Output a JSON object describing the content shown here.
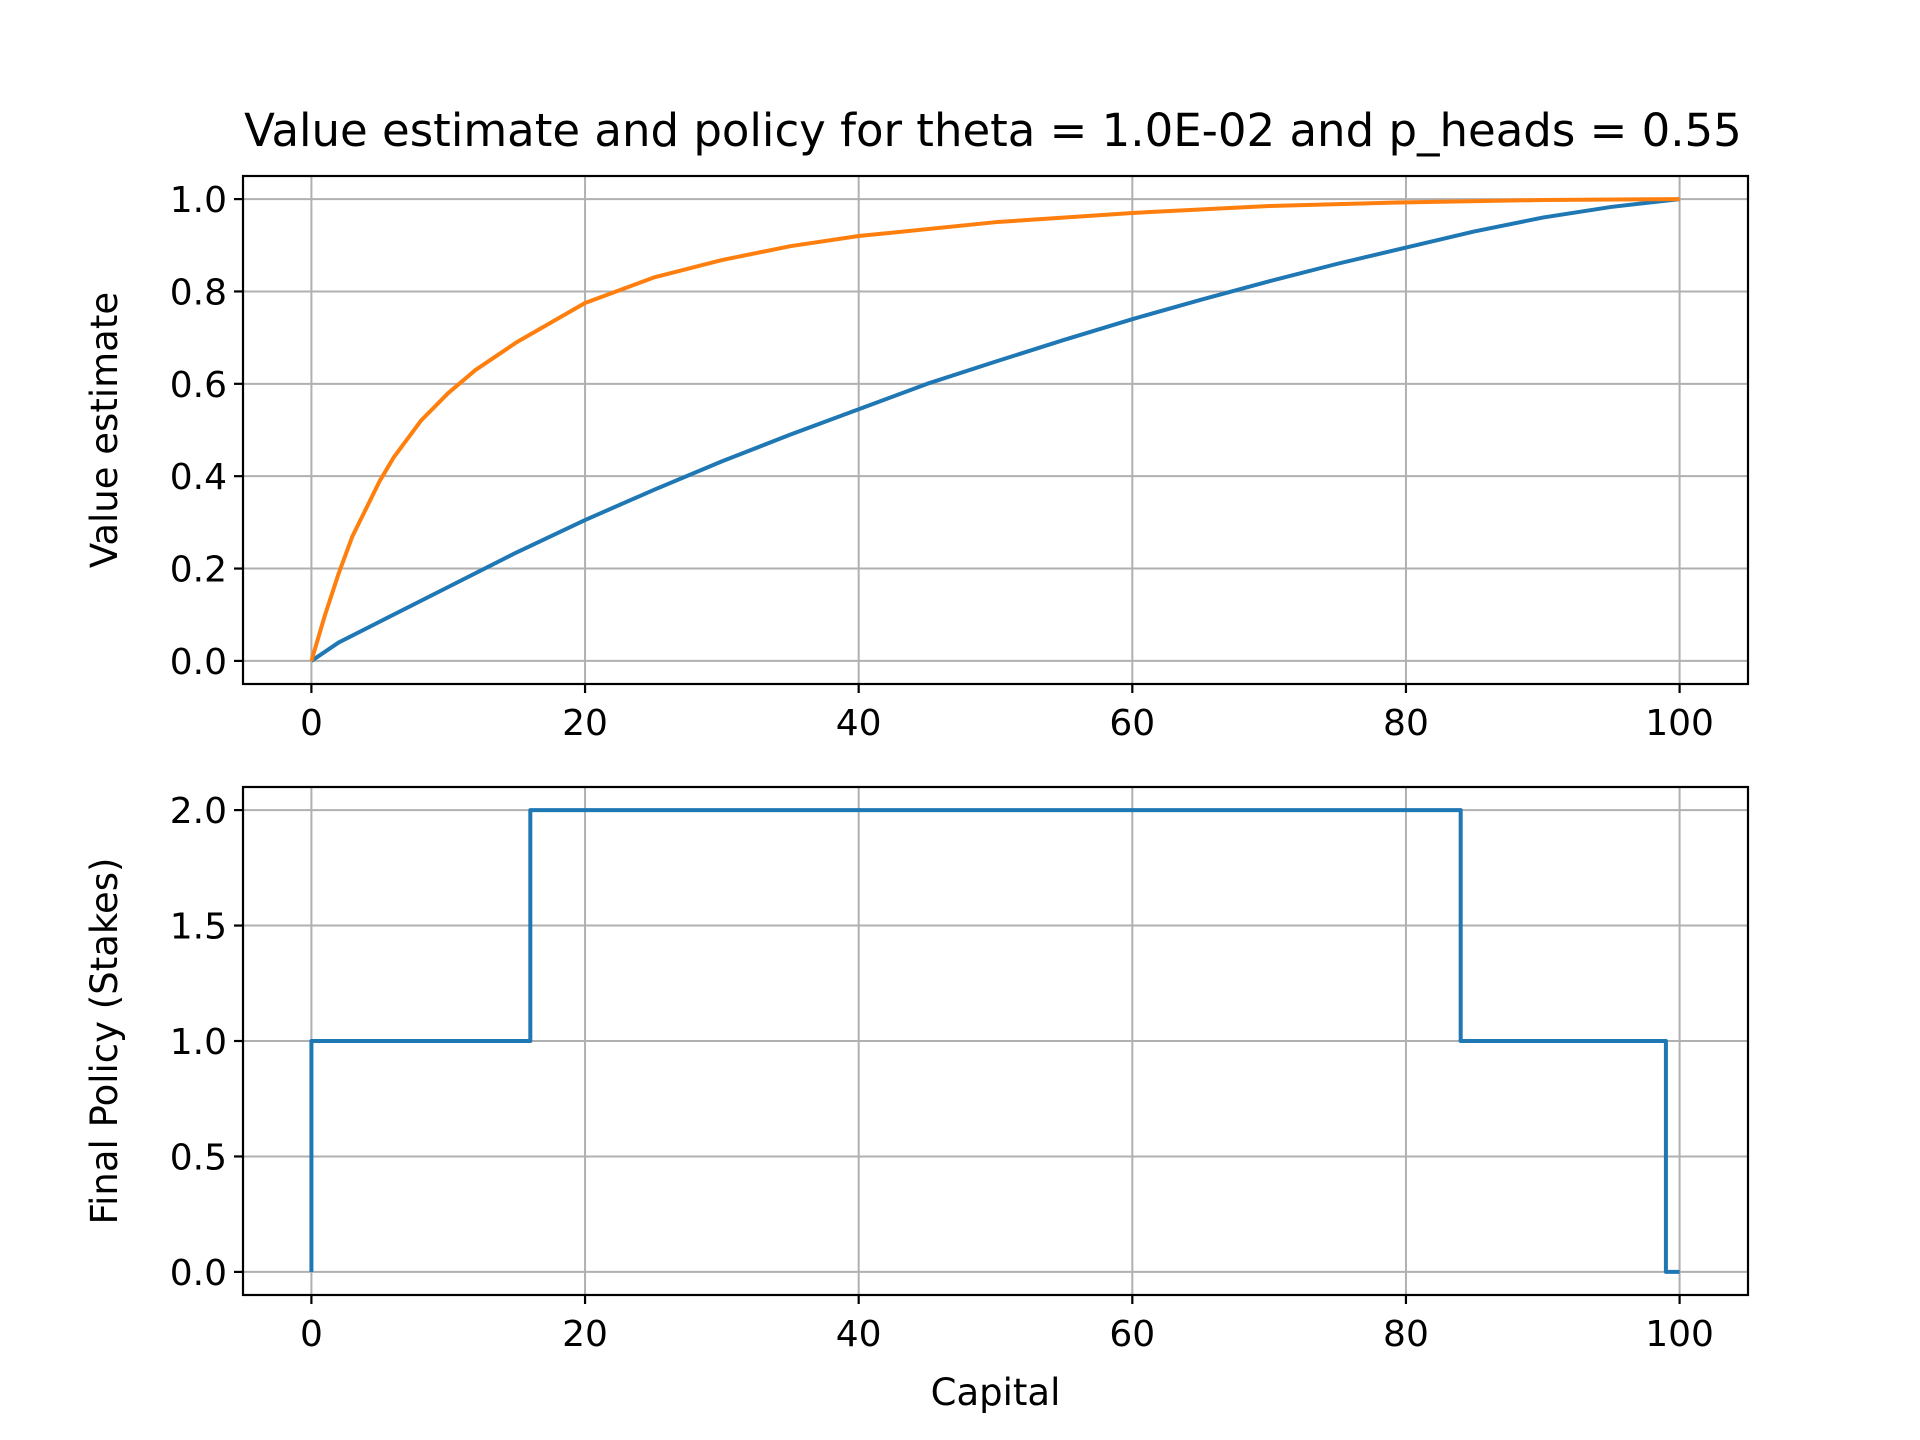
{
  "chart_data": [
    {
      "type": "line",
      "title": "Value estimate and policy for theta = 1.0E-02 and p_heads = 0.55",
      "xlabel": "",
      "ylabel": "Value estimate",
      "xlim": [
        -5,
        105
      ],
      "ylim": [
        -0.05,
        1.05
      ],
      "xticks": [
        0,
        20,
        40,
        60,
        80,
        100
      ],
      "yticks": [
        0.0,
        0.2,
        0.4,
        0.6,
        0.8,
        1.0
      ],
      "xtick_labels": [
        "0",
        "20",
        "40",
        "60",
        "80",
        "100"
      ],
      "ytick_labels": [
        "0.0",
        "0.2",
        "0.4",
        "0.6",
        "0.8",
        "1.0"
      ],
      "grid": true,
      "series": [
        {
          "color": "#1f77b4",
          "x": [
            0,
            2,
            5,
            10,
            15,
            20,
            25,
            30,
            35,
            40,
            45,
            50,
            55,
            60,
            65,
            70,
            75,
            80,
            85,
            90,
            95,
            100
          ],
          "y": [
            0.0,
            0.04,
            0.085,
            0.16,
            0.235,
            0.305,
            0.37,
            0.432,
            0.49,
            0.545,
            0.6,
            0.648,
            0.695,
            0.74,
            0.782,
            0.822,
            0.86,
            0.895,
            0.93,
            0.96,
            0.983,
            1.0
          ]
        },
        {
          "color": "#ff7f0e",
          "x": [
            0,
            1,
            2,
            3,
            4,
            5,
            6,
            8,
            10,
            12,
            15,
            20,
            25,
            30,
            35,
            40,
            50,
            60,
            70,
            80,
            90,
            100
          ],
          "y": [
            0.0,
            0.1,
            0.19,
            0.27,
            0.33,
            0.39,
            0.44,
            0.52,
            0.58,
            0.63,
            0.69,
            0.775,
            0.83,
            0.868,
            0.898,
            0.92,
            0.95,
            0.97,
            0.985,
            0.993,
            0.998,
            1.0
          ]
        }
      ]
    },
    {
      "type": "line",
      "title": "",
      "xlabel": "Capital",
      "ylabel": "Final Policy (Stakes)",
      "xlim": [
        -5,
        105
      ],
      "ylim": [
        -0.1,
        2.1
      ],
      "xticks": [
        0,
        20,
        40,
        60,
        80,
        100
      ],
      "yticks": [
        0.0,
        0.5,
        1.0,
        1.5,
        2.0
      ],
      "xtick_labels": [
        "0",
        "20",
        "40",
        "60",
        "80",
        "100"
      ],
      "ytick_labels": [
        "0.0",
        "0.5",
        "1.0",
        "1.5",
        "2.0"
      ],
      "grid": true,
      "series": [
        {
          "color": "#1f77b4",
          "x": [
            0,
            0,
            16,
            16,
            84,
            84,
            99,
            99,
            100
          ],
          "y": [
            0,
            1,
            1,
            2,
            2,
            1,
            1,
            0,
            0
          ]
        }
      ]
    }
  ]
}
